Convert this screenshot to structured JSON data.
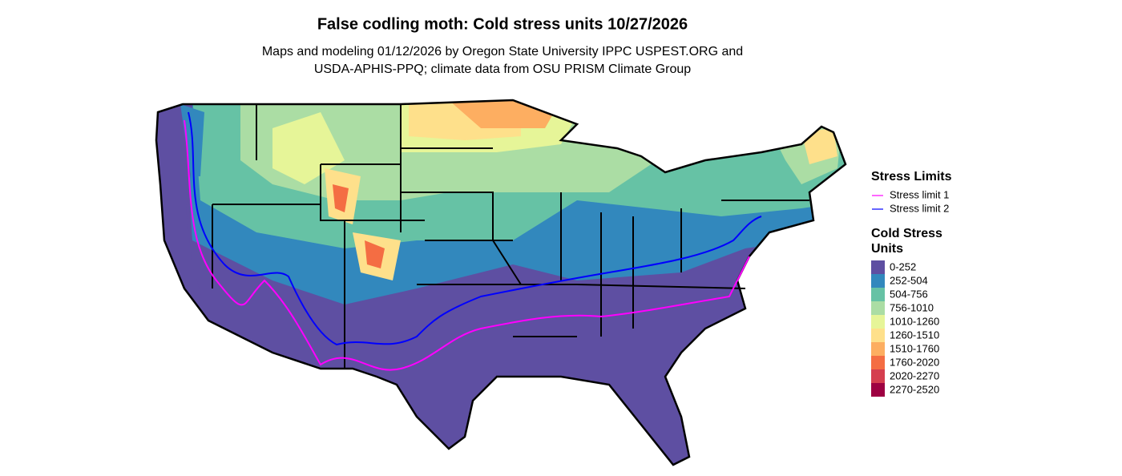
{
  "header": {
    "title": "False codling moth: Cold stress units 10/27/2026",
    "subtitle": [
      "Maps and modeling 01/12/2026 by Oregon State University IPPC USPEST.ORG and",
      "USDA-APHIS-PPQ; climate data from OSU PRISM Climate Group"
    ]
  },
  "legend": {
    "stress_limits": {
      "title": "Stress Limits",
      "items": [
        {
          "label": "Stress limit 1",
          "color": "#ff00ff"
        },
        {
          "label": "Stress limit 2",
          "color": "#0000ff"
        }
      ]
    },
    "cold_stress_units": {
      "title": [
        "Cold Stress",
        "Units"
      ],
      "items": [
        {
          "label": "0-252",
          "color": "#5e4fa2"
        },
        {
          "label": "252-504",
          "color": "#3288bd"
        },
        {
          "label": "504-756",
          "color": "#66c2a5"
        },
        {
          "label": "756-1010",
          "color": "#abdda4"
        },
        {
          "label": "1010-1260",
          "color": "#e6f598"
        },
        {
          "label": "1260-1510",
          "color": "#fee08b"
        },
        {
          "label": "1510-1760",
          "color": "#fdae61"
        },
        {
          "label": "1760-2020",
          "color": "#f46d43"
        },
        {
          "label": "2020-2270",
          "color": "#d53e4f"
        },
        {
          "label": "2270-2520",
          "color": "#9e0142"
        }
      ]
    }
  }
}
